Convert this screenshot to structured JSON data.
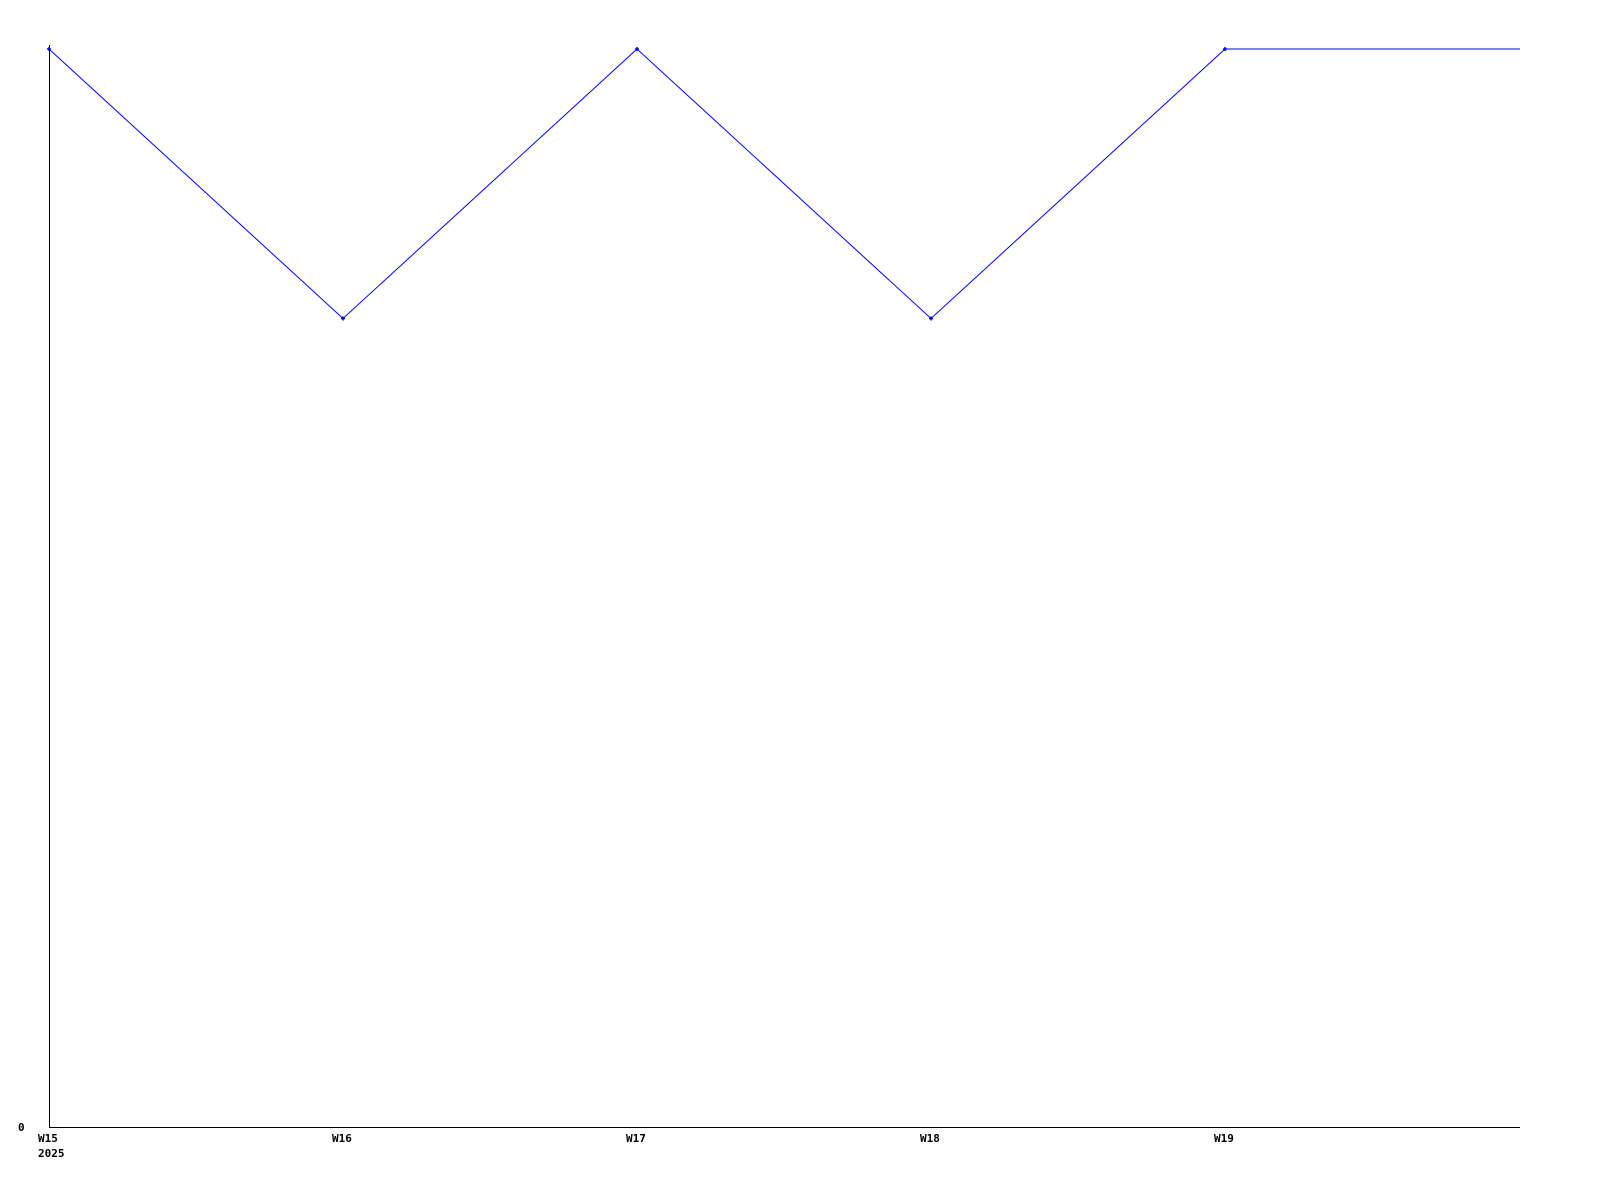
{
  "chart_data": {
    "type": "line",
    "title": "",
    "xlabel": "",
    "ylabel": "",
    "categories": [
      "W15",
      "W16",
      "W17",
      "W18",
      "W19"
    ],
    "x_sublabel": "2025",
    "series": [
      {
        "values": [
          4,
          3,
          4,
          3,
          4
        ],
        "color": "#0000ff",
        "extends_flat_to_right_edge": true
      }
    ],
    "yticks": [
      "0"
    ],
    "ylim": [
      0,
      4
    ],
    "grid": false,
    "axis_color": "#000000"
  }
}
